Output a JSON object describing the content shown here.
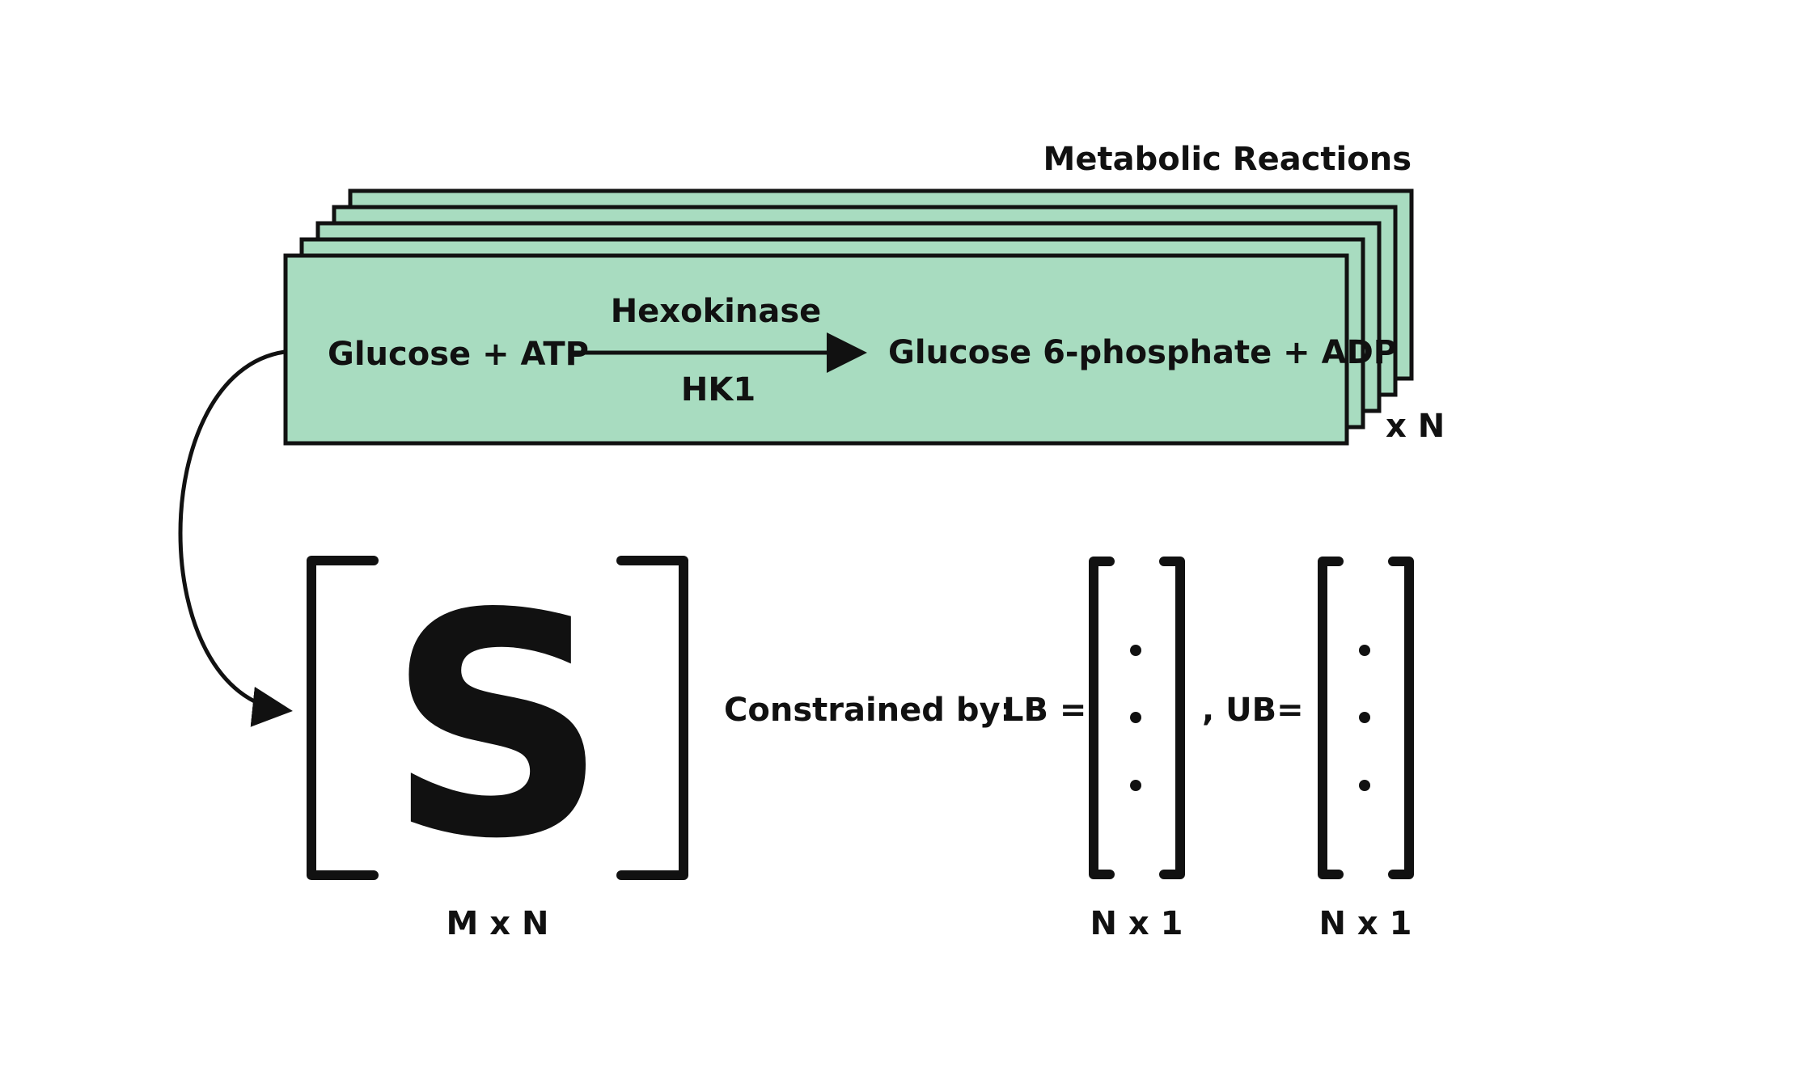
{
  "stack": {
    "title": "Metabolic Reactions",
    "count": "x N",
    "fill_color": "#a8dcc0",
    "stroke_color": "#111111"
  },
  "reaction": {
    "substrates": "Glucose + ATP",
    "enzyme_name": "Hexokinase",
    "gene": "HK1",
    "products": "Glucose 6-phosphate + ADP"
  },
  "matrix": {
    "symbol": "S",
    "symbol_color": "#909090",
    "dimension": "M x N"
  },
  "constraints": {
    "label": "Constrained by:",
    "lb_label": "LB =",
    "ub_label": ", UB=",
    "lb_dimension": "N x 1",
    "ub_dimension": "N x 1"
  }
}
